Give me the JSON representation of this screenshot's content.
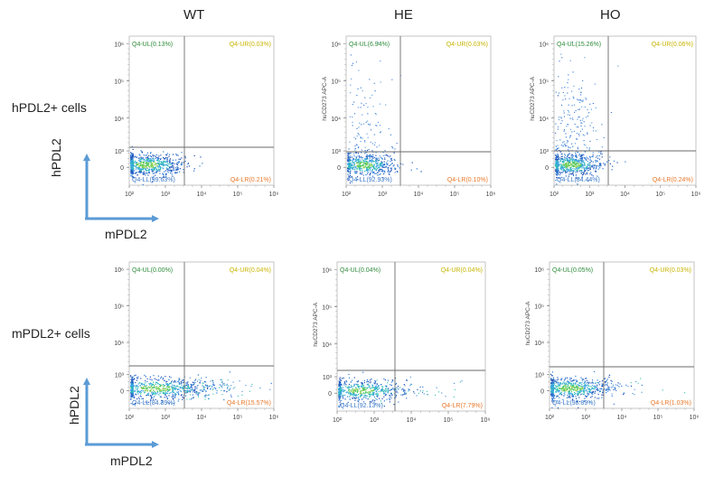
{
  "columns": [
    "WT",
    "HE",
    "HO"
  ],
  "rows": [
    "hPDL2+ cells",
    "mPDL2+ cells"
  ],
  "axis_words": {
    "vertical": "hPDL2",
    "horizontal": "mPDL2"
  },
  "colors": {
    "green": "#2e8b3a",
    "yellow": "#c8b400",
    "orange": "#e8782a",
    "blue": "#3a78c8",
    "arrow": "#5b9bd5",
    "gate": "#6a6a6a"
  },
  "chart_data": [
    {
      "type": "scatter",
      "title": "WT",
      "row": "hPDL2+ cells",
      "xlabel": "",
      "ylabel": "",
      "x_ticks": [
        "10²",
        "10³",
        "10⁴",
        "10⁵",
        "10⁶"
      ],
      "y_ticks": [
        "0",
        "10³",
        "10⁴",
        "10⁵",
        "10⁶"
      ],
      "quadrants": {
        "UL": "Q4-UL(0.13%)",
        "UR": "Q4-UR(0.03%)",
        "LL": "Q4-LL(99.63%)",
        "LR": "Q4-LR(0.21%)"
      }
    },
    {
      "type": "scatter",
      "title": "HE",
      "row": "hPDL2+ cells",
      "xlabel": "",
      "ylabel": "huCD273 APC-A",
      "x_ticks": [
        "10²",
        "10³",
        "10⁴",
        "10⁵",
        "10⁶"
      ],
      "y_ticks": [
        "0",
        "10³",
        "10⁴",
        "10⁵",
        "10⁶"
      ],
      "quadrants": {
        "UL": "Q4-UL(6.94%)",
        "UR": "Q4-UR(0.03%)",
        "LL": "Q4-LL(92.93%)",
        "LR": "Q4-LR(0.10%)"
      }
    },
    {
      "type": "scatter",
      "title": "HO",
      "row": "hPDL2+ cells",
      "xlabel": "",
      "ylabel": "huCD273 APC-A",
      "x_ticks": [
        "10²",
        "10³",
        "10⁴",
        "10⁵",
        "10⁶"
      ],
      "y_ticks": [
        "0",
        "10³",
        "10⁴",
        "10⁵",
        "10⁶"
      ],
      "quadrants": {
        "UL": "Q4-UL(15.26%)",
        "UR": "Q4-UR(0.06%)",
        "LL": "Q4-LL(84.44%)",
        "LR": "Q4-LR(0.24%)"
      }
    },
    {
      "type": "scatter",
      "title": "WT",
      "row": "mPDL2+ cells",
      "xlabel": "",
      "ylabel": "",
      "x_ticks": [
        "10²",
        "10³",
        "10⁴",
        "10⁵",
        "10⁶"
      ],
      "y_ticks": [
        "0",
        "10³",
        "10⁴",
        "10⁵",
        "10⁶"
      ],
      "quadrants": {
        "UL": "Q4-UL(0.00%)",
        "UR": "Q4-UR(0.04%)",
        "LL": "Q4-LL(84.39%)",
        "LR": "Q4-LR(15.57%)"
      }
    },
    {
      "type": "scatter",
      "title": "HE",
      "row": "mPDL2+ cells",
      "xlabel": "",
      "ylabel": "huCD273 APC-A",
      "x_ticks": [
        "10²",
        "10³",
        "10⁴",
        "10⁵",
        "10⁶"
      ],
      "y_ticks": [
        "0",
        "10³",
        "10⁴",
        "10⁵",
        "10⁶"
      ],
      "quadrants": {
        "UL": "Q4-UL(0.04%)",
        "UR": "Q4-UR(0.04%)",
        "LL": "Q4-LL(92.13%)",
        "LR": "Q4-LR(7.79%)"
      }
    },
    {
      "type": "scatter",
      "title": "HO",
      "row": "mPDL2+ cells",
      "xlabel": "",
      "ylabel": "huCD273 APC-A",
      "x_ticks": [
        "10²",
        "10³",
        "10⁴",
        "10⁵",
        "10⁶"
      ],
      "y_ticks": [
        "0",
        "10³",
        "10⁴",
        "10⁵",
        "10⁶"
      ],
      "quadrants": {
        "UL": "Q4-UL(0.05%)",
        "UR": "Q4-UR(0.03%)",
        "LL": "Q4-LL(98.89%)",
        "LR": "Q4-LR(1.03%)"
      }
    }
  ]
}
